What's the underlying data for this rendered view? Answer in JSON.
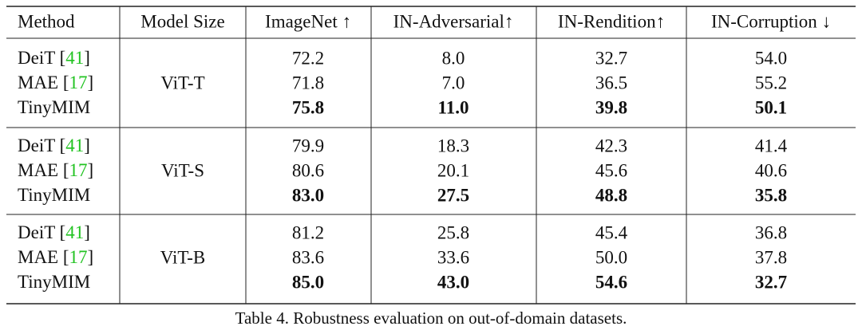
{
  "table": {
    "header": [
      "Method",
      "Model Size",
      "ImageNet ↑",
      "IN-Adversarial↑",
      "IN-Rendition↑",
      "IN-Corruption ↓"
    ],
    "groups": [
      {
        "model_size": "ViT-T",
        "rows": [
          {
            "method": [
              "DeiT [",
              "41",
              "]"
            ],
            "values": [
              "72.2",
              "8.0",
              "32.7",
              "54.0"
            ],
            "bold": false
          },
          {
            "method": [
              "MAE [",
              "17",
              "]"
            ],
            "values": [
              "71.8",
              "7.0",
              "36.5",
              "55.2"
            ],
            "bold": false
          },
          {
            "method": [
              "TinyMIM"
            ],
            "values": [
              "75.8",
              "11.0",
              "39.8",
              "50.1"
            ],
            "bold": true
          }
        ]
      },
      {
        "model_size": "ViT-S",
        "rows": [
          {
            "method": [
              "DeiT [",
              "41",
              "]"
            ],
            "values": [
              "79.9",
              "18.3",
              "42.3",
              "41.4"
            ],
            "bold": false
          },
          {
            "method": [
              "MAE [",
              "17",
              "]"
            ],
            "values": [
              "80.6",
              "20.1",
              "45.6",
              "40.6"
            ],
            "bold": false
          },
          {
            "method": [
              "TinyMIM"
            ],
            "values": [
              "83.0",
              "27.5",
              "48.8",
              "35.8"
            ],
            "bold": true
          }
        ]
      },
      {
        "model_size": "ViT-B",
        "rows": [
          {
            "method": [
              "DeiT [",
              "41",
              "]"
            ],
            "values": [
              "81.2",
              "25.8",
              "45.4",
              "36.8"
            ],
            "bold": false
          },
          {
            "method": [
              "MAE [",
              "17",
              "]"
            ],
            "values": [
              "83.6",
              "33.6",
              "50.0",
              "37.8"
            ],
            "bold": false
          },
          {
            "method": [
              "TinyMIM"
            ],
            "values": [
              "85.0",
              "43.0",
              "54.6",
              "32.7"
            ],
            "bold": true
          }
        ]
      }
    ]
  },
  "caption": "Table 4. Robustness evaluation on out-of-domain datasets."
}
